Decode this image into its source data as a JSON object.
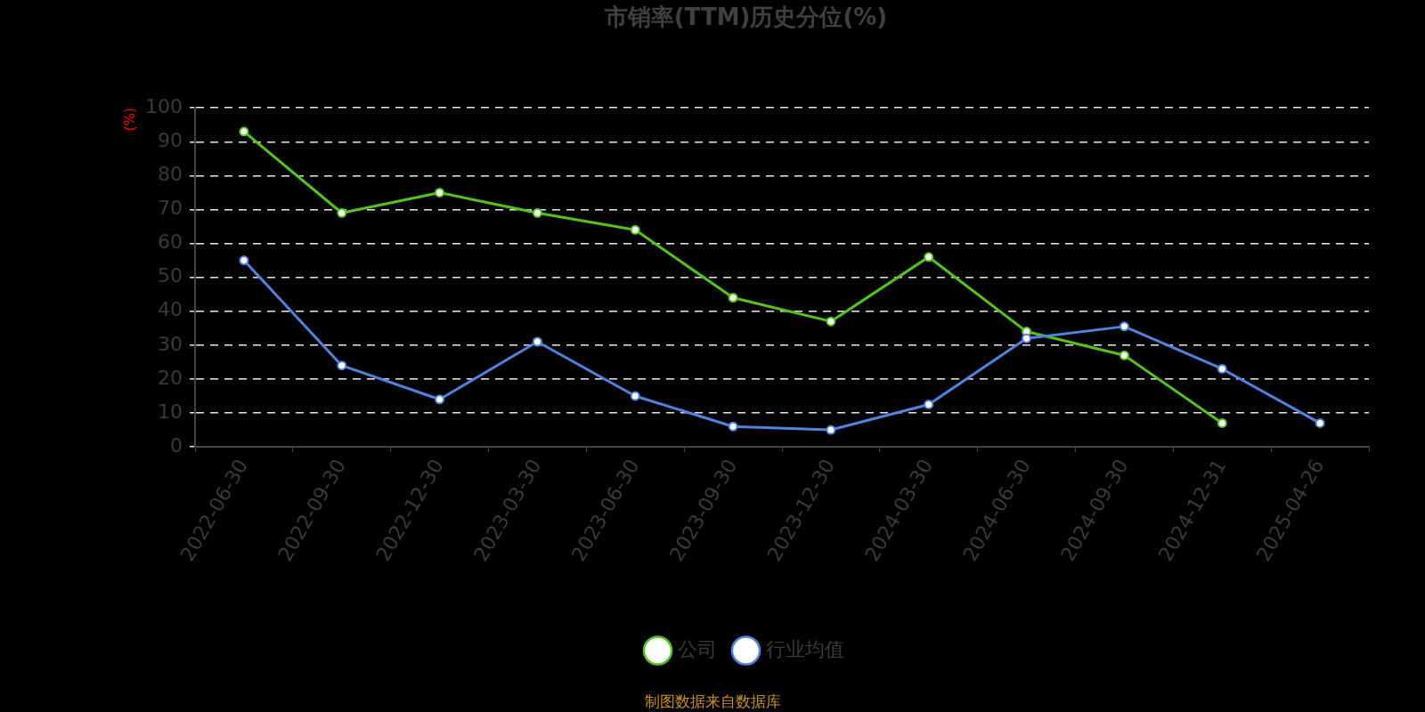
{
  "chart_data": {
    "type": "line",
    "title": "市销率(TTM)历史分位(%)",
    "ylabel": "(%)",
    "categories": [
      "2022-06-30",
      "2022-09-30",
      "2022-12-30",
      "2023-03-30",
      "2023-06-30",
      "2023-09-30",
      "2023-12-30",
      "2024-03-30",
      "2024-06-30",
      "2024-09-30",
      "2024-12-31",
      "2025-04-26"
    ],
    "series": [
      {
        "name": "公司",
        "color": "#52c41a",
        "values": [
          93,
          69,
          75,
          69,
          64,
          44,
          37,
          56,
          34,
          27,
          7,
          null
        ]
      },
      {
        "name": "行业均值",
        "color": "#4f83e0",
        "values": [
          55,
          24,
          14,
          31,
          15,
          6,
          5,
          12.5,
          32,
          35.5,
          23,
          7
        ]
      }
    ],
    "ylim": [
      0,
      100
    ],
    "yticks": [
      0,
      10,
      20,
      30,
      40,
      50,
      60,
      70,
      80,
      90,
      100
    ],
    "grid": "y",
    "legend": "bottom",
    "marker": "circle",
    "line_style": "solid",
    "annotations": [
      "制图数据来自数据库"
    ]
  }
}
